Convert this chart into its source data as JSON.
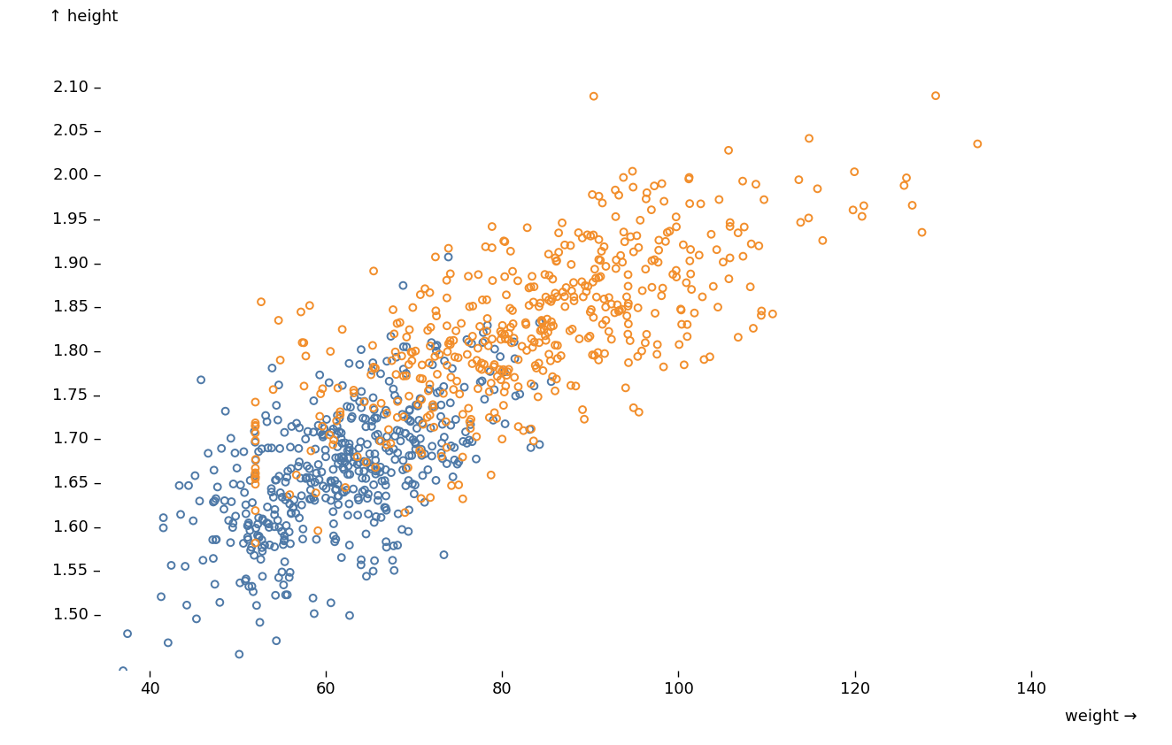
{
  "xlabel": "weight →",
  "ylabel": "↑ height",
  "xlim": [
    35,
    152
  ],
  "ylim": [
    1.435,
    2.155
  ],
  "xticks": [
    40,
    60,
    80,
    100,
    120,
    140
  ],
  "yticks": [
    1.5,
    1.55,
    1.6,
    1.65,
    1.7,
    1.75,
    1.8,
    1.85,
    1.9,
    1.95,
    2.0,
    2.05,
    2.1
  ],
  "female_color": "#4e79a7",
  "male_color": "#f28e2b",
  "marker_size": 32,
  "linewidth": 1.4,
  "background_color": "#ffffff",
  "font_size": 13,
  "label_font_size": 13
}
